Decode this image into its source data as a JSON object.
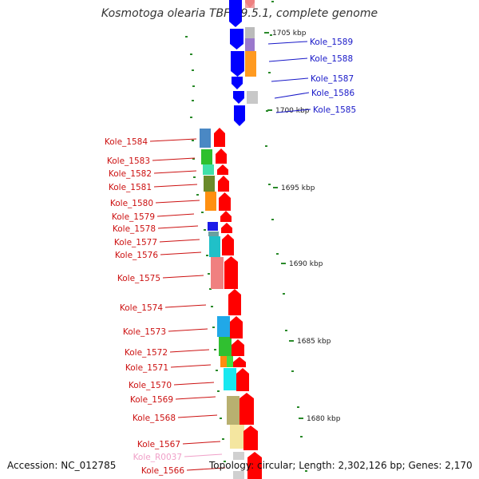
{
  "title": "Kosmotoga olearia TBF 19.5.1, complete genome",
  "footer": {
    "accession": "Accession: NC_012785",
    "info": "Topology: circular; Length: 2,302,126 bp; Genes: 2,170"
  },
  "colors": {
    "reverse_label": "#1818c8",
    "forward_label": "#cc1111",
    "rna_label": "#f0a0c8",
    "backbone": "#909090",
    "tick": "#2a8a2a",
    "forward_cds": "#ff0000",
    "reverse_cds": "#0000ff"
  },
  "scale_labels": [
    "1705 kbp",
    "1700 kbp",
    "1695 kbp",
    "1690 kbp",
    "1685 kbp",
    "1680 kbp"
  ],
  "reverse_genes": [
    "Kole_1589",
    "Kole_1588",
    "Kole_1587",
    "Kole_1586",
    "Kole_1585"
  ],
  "forward_genes": [
    "Kole_1584",
    "Kole_1583",
    "Kole_1582",
    "Kole_1581",
    "Kole_1580",
    "Kole_1579",
    "Kole_1578",
    "Kole_1577",
    "Kole_1576",
    "Kole_1575",
    "Kole_1574",
    "Kole_1573",
    "Kole_1572",
    "Kole_1571",
    "Kole_1570",
    "Kole_1569",
    "Kole_1568",
    "Kole_1567",
    "Kole_R0037",
    "Kole_1566"
  ]
}
